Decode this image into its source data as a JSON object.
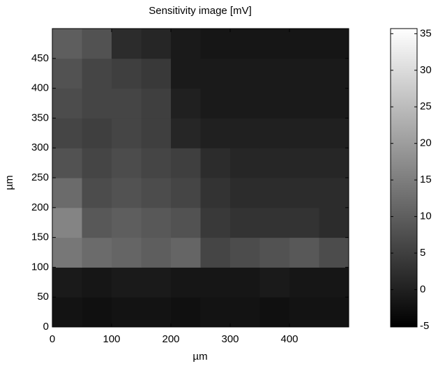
{
  "chart_data": {
    "type": "heatmap",
    "title": "Sensitivity image [mV]",
    "x_label": "µm",
    "y_label": "µm",
    "x": [
      25,
      75,
      125,
      175,
      225,
      275,
      325,
      375,
      425,
      475
    ],
    "y": [
      25,
      75,
      125,
      175,
      225,
      275,
      325,
      375,
      425,
      475
    ],
    "z": [
      [
        -2,
        -2.5,
        -2,
        -2,
        -2.5,
        -2,
        -2,
        -2.5,
        -2,
        -2
      ],
      [
        -1,
        -1.5,
        -1,
        -1,
        -1.5,
        -1.5,
        -1.5,
        -1,
        -1.5,
        -1.5
      ],
      [
        14,
        12,
        11,
        10,
        11,
        6,
        7,
        8,
        9,
        7
      ],
      [
        16,
        9,
        10,
        9,
        8,
        4,
        3,
        3,
        3,
        2
      ],
      [
        12,
        7,
        8,
        7,
        6,
        3,
        2,
        2,
        2,
        2
      ],
      [
        8,
        6,
        7,
        6,
        5,
        2,
        1,
        1,
        1,
        1
      ],
      [
        6,
        5,
        6,
        5,
        1,
        0,
        0,
        0,
        0,
        0
      ],
      [
        7,
        6,
        6,
        5,
        0,
        -1,
        -1,
        -1,
        -1,
        -1
      ],
      [
        8,
        6,
        5,
        4,
        -1,
        -1,
        -1,
        -1,
        -1,
        -1
      ],
      [
        10,
        8,
        2,
        1,
        -1,
        -1.5,
        -1.5,
        -1.5,
        -1.5,
        -1.5
      ]
    ],
    "xlim": [
      0,
      500
    ],
    "ylim": [
      0,
      500
    ],
    "xticks": [
      0,
      100,
      200,
      300,
      400
    ],
    "yticks": [
      0,
      50,
      100,
      150,
      200,
      250,
      300,
      350,
      400,
      450
    ],
    "colormap": "gray",
    "clim": [
      -5.1,
      35.7
    ],
    "colorbar_ticks": [
      -5,
      0,
      5,
      10,
      15,
      20,
      25,
      30,
      35
    ]
  }
}
